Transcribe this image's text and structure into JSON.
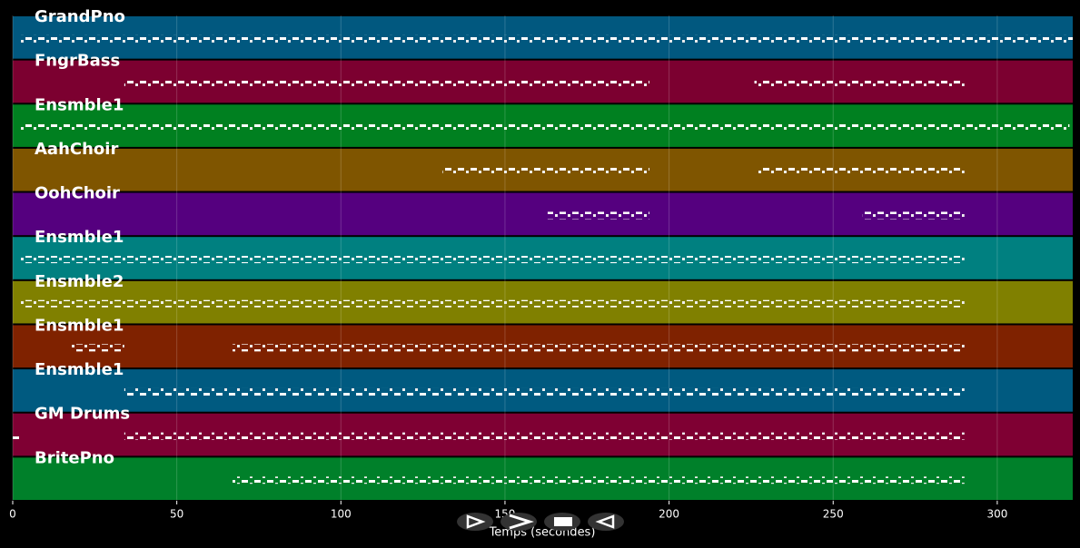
{
  "chart_data": {
    "type": "piano-roll",
    "x_label": "Temps (secondes)",
    "xlim": [
      0,
      323
    ],
    "xticks": [
      0,
      50,
      100,
      150,
      200,
      250,
      300
    ],
    "grid": true,
    "tracks": [
      {
        "name": "GrandPno",
        "color": "#01587f",
        "segments": [
          [
            2,
            323
          ]
        ]
      },
      {
        "name": "FngrBass",
        "color": "#7c0030",
        "segments": [
          [
            34,
            194
          ],
          [
            226,
            290
          ]
        ]
      },
      {
        "name": "Ensmble1",
        "color": "#008020",
        "segments": [
          [
            2,
            322
          ]
        ]
      },
      {
        "name": "AahChoir",
        "color": "#7f5500",
        "segments": [
          [
            131,
            194
          ],
          [
            227,
            290
          ]
        ]
      },
      {
        "name": "OohChoir",
        "color": "#55007f",
        "segments": [
          [
            163,
            194
          ],
          [
            259,
            290
          ]
        ]
      },
      {
        "name": "Ensmble1",
        "color": "#008080",
        "segments": [
          [
            2,
            290
          ]
        ]
      },
      {
        "name": "Ensmble2",
        "color": "#808000",
        "segments": [
          [
            2,
            290
          ]
        ]
      },
      {
        "name": "Ensmble1",
        "color": "#7f2200",
        "segments": [
          [
            18,
            34
          ],
          [
            67,
            290
          ]
        ]
      },
      {
        "name": "Ensmble1",
        "color": "#005a80",
        "segments": [
          [
            34,
            290
          ]
        ]
      },
      {
        "name": "GM Drums",
        "color": "#7f0033",
        "segments": [
          [
            0,
            2
          ],
          [
            34,
            290
          ]
        ]
      },
      {
        "name": "BritePno",
        "color": "#00802a",
        "segments": [
          [
            67,
            290
          ]
        ]
      }
    ]
  }
}
